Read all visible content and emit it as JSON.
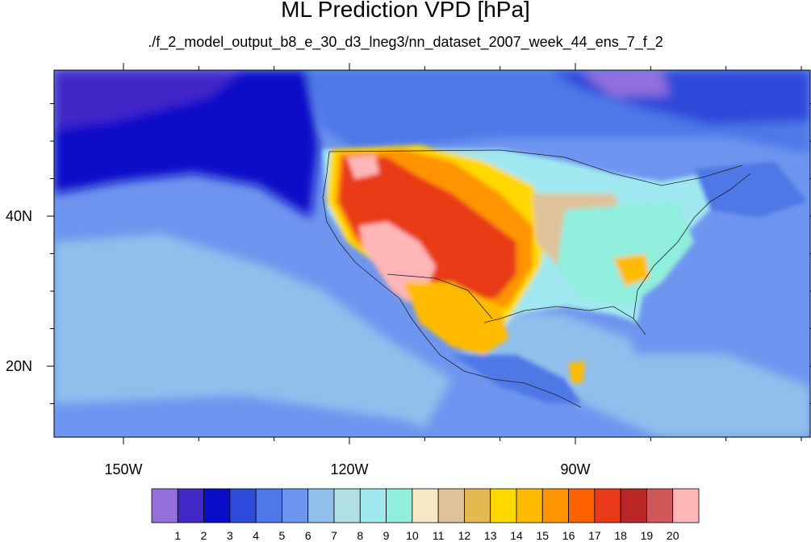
{
  "title": "ML Prediction VPD [hPa]",
  "subtitle": "./f_2_model_output_b8_e_30_d3_lneg3/nn_dataset_2007_week_44_ens_7_f_2",
  "map": {
    "lon_ticks": [
      {
        "value": -150,
        "label": "150W"
      },
      {
        "value": -120,
        "label": "120W"
      },
      {
        "value": -90,
        "label": "90W"
      }
    ],
    "lat_ticks": [
      {
        "value": 40,
        "label": "40N"
      },
      {
        "value": 20,
        "label": "20N"
      }
    ]
  },
  "colorbar": {
    "colors": [
      "#9370db",
      "#4328c8",
      "#0a0ec8",
      "#2e4ada",
      "#4e78e6",
      "#6e95ef",
      "#91bfec",
      "#b0e0e6",
      "#a0e8f0",
      "#90eedc",
      "#f5e8c2",
      "#dec29a",
      "#e6b850",
      "#ffd800",
      "#ffbb00",
      "#ff9400",
      "#ff6000",
      "#e83a18",
      "#b82626",
      "#d05858",
      "#ffb6b6"
    ],
    "labels": [
      "1",
      "2",
      "3",
      "4",
      "5",
      "6",
      "7",
      "8",
      "9",
      "10",
      "11",
      "12",
      "13",
      "14",
      "15",
      "16",
      "17",
      "18",
      "19",
      "20"
    ]
  }
}
